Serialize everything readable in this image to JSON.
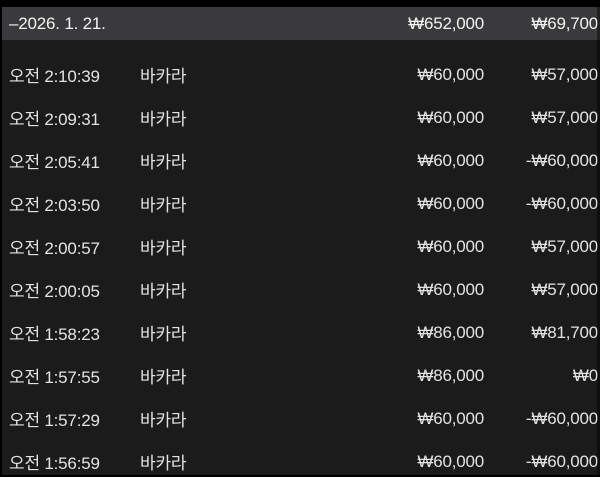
{
  "header": {
    "date": "–2026. 1. 21.",
    "total_amount": "₩652,000",
    "total_net": "₩69,700"
  },
  "rows": [
    {
      "time": "오전 2:10:39",
      "game": "바카라",
      "amount": "₩60,000",
      "net": "₩57,000"
    },
    {
      "time": "오전 2:09:31",
      "game": "바카라",
      "amount": "₩60,000",
      "net": "₩57,000"
    },
    {
      "time": "오전 2:05:41",
      "game": "바카라",
      "amount": "₩60,000",
      "net": "-₩60,000"
    },
    {
      "time": "오전 2:03:50",
      "game": "바카라",
      "amount": "₩60,000",
      "net": "-₩60,000"
    },
    {
      "time": "오전 2:00:57",
      "game": "바카라",
      "amount": "₩60,000",
      "net": "₩57,000"
    },
    {
      "time": "오전 2:00:05",
      "game": "바카라",
      "amount": "₩60,000",
      "net": "₩57,000"
    },
    {
      "time": "오전 1:58:23",
      "game": "바카라",
      "amount": "₩86,000",
      "net": "₩81,700"
    },
    {
      "time": "오전 1:57:55",
      "game": "바카라",
      "amount": "₩86,000",
      "net": "₩0"
    },
    {
      "time": "오전 1:57:29",
      "game": "바카라",
      "amount": "₩60,000",
      "net": "-₩60,000"
    },
    {
      "time": "오전 1:56:59",
      "game": "바카라",
      "amount": "₩60,000",
      "net": "-₩60,000"
    }
  ],
  "colors": {
    "header_bg": "#3a3a3c",
    "body_bg": "#1b1b1b",
    "text": "#e3e3e3",
    "header_text": "#f2f2f2",
    "edge": "#000000"
  }
}
